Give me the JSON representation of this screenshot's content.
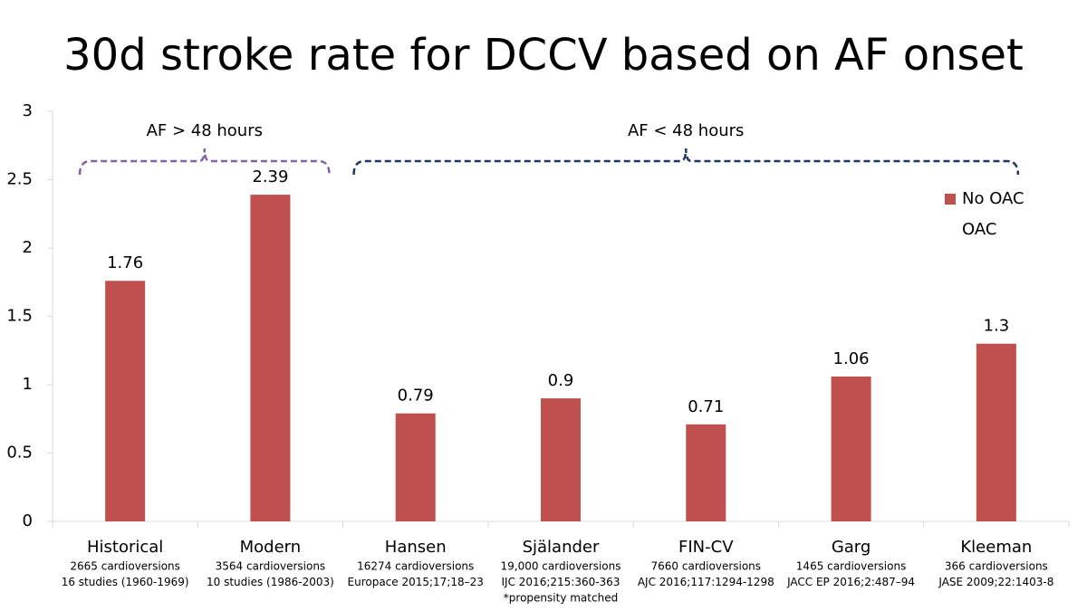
{
  "chart_data": {
    "type": "bar",
    "title": "30d stroke rate for DCCV based on AF onset",
    "categories": [
      "Historical",
      "Modern",
      "Hansen",
      "Själander",
      "FIN-CV",
      "Garg",
      "Kleeman"
    ],
    "category_notes": [
      [
        "2665 cardioversions",
        "16 studies (1960-1969)"
      ],
      [
        "3564 cardioversions",
        "10 studies (1986-2003)"
      ],
      [
        "16274 cardioversions",
        "Europace 2015;17;18–23"
      ],
      [
        "19,000 cardioversions",
        "IJC 2016;215:360-363",
        "*propensity matched"
      ],
      [
        "7660 cardioversions",
        "AJC 2016;117:1294-1298"
      ],
      [
        "1465 cardioversions",
        "JACC EP 2016;2:487–94"
      ],
      [
        "366 cardioversions",
        "JASE 2009;22:1403-8"
      ]
    ],
    "series": [
      {
        "name": "No OAC",
        "color": "#c0504d",
        "values": [
          1.76,
          2.39,
          0.79,
          0.9,
          0.71,
          1.06,
          1.3
        ]
      },
      {
        "name": "OAC",
        "color": "#ffffff",
        "values": [
          null,
          null,
          null,
          null,
          null,
          null,
          null
        ]
      }
    ],
    "annotations": [
      {
        "text": "AF > 48 hours",
        "color": "#8064a2"
      },
      {
        "text": "AF < 48 hours",
        "color": "#1f3864"
      }
    ],
    "ylim": [
      0,
      3
    ],
    "yticks": [
      0,
      0.5,
      1,
      1.5,
      2,
      2.5,
      3
    ],
    "grid": false
  }
}
